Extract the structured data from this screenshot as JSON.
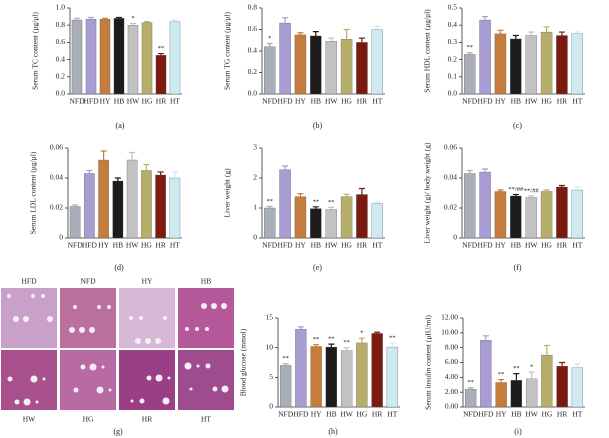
{
  "chart_data": [
    {
      "type": "bar",
      "label": "(a)",
      "ylabel": "Serum TC content (μg/μl)",
      "categories": [
        "NFD",
        "HFD",
        "HY",
        "HB",
        "HW",
        "HG",
        "HR",
        "HT"
      ],
      "colors": [
        "#a9aeb9",
        "#a99cd2",
        "#c47d3c",
        "#1c1c1c",
        "#c2c2c2",
        "#b7ae6c",
        "#7b1a10",
        "#cdeaf1"
      ],
      "values": [
        0.86,
        0.87,
        0.87,
        0.88,
        0.8,
        0.83,
        0.45,
        0.84
      ],
      "errors": [
        0.02,
        0.02,
        0.01,
        0.01,
        0.02,
        0.01,
        0.02,
        0.02
      ],
      "annotations": [
        null,
        null,
        null,
        null,
        "*",
        null,
        "**",
        null
      ],
      "ylim": [
        0,
        1.0
      ],
      "yticks": [
        {
          "value": 0,
          "label": "0.0"
        },
        0.2,
        0.4,
        0.6,
        0.8,
        {
          "value": 1.0,
          "label": "1.0"
        }
      ]
    },
    {
      "type": "bar",
      "label": "(b)",
      "ylabel": "Serum TG content (μg/μl)",
      "categories": [
        "NFD",
        "HFD",
        "HY",
        "HB",
        "HW",
        "HG",
        "HR",
        "HT"
      ],
      "colors": [
        "#a9aeb9",
        "#a99cd2",
        "#c47d3c",
        "#1c1c1c",
        "#c2c2c2",
        "#b7ae6c",
        "#7b1a10",
        "#cdeaf1"
      ],
      "values": [
        0.44,
        0.66,
        0.55,
        0.54,
        0.49,
        0.51,
        0.48,
        0.6
      ],
      "errors": [
        0.03,
        0.05,
        0.02,
        0.04,
        0.03,
        0.09,
        0.04,
        0.03
      ],
      "annotations": [
        "*",
        null,
        null,
        null,
        null,
        null,
        null,
        null
      ],
      "ylim": [
        0,
        0.8
      ],
      "yticks": [
        {
          "value": 0,
          "label": "0.0"
        },
        0.2,
        0.4,
        0.6,
        0.8
      ]
    },
    {
      "type": "bar",
      "label": "(c)",
      "ylabel": "Serum HDL content (μg/μl)",
      "categories": [
        "NFD",
        "HFD",
        "HY",
        "HB",
        "HW",
        "HG",
        "HR",
        "HT"
      ],
      "colors": [
        "#a9aeb9",
        "#a99cd2",
        "#c47d3c",
        "#1c1c1c",
        "#c2c2c2",
        "#b7ae6c",
        "#7b1a10",
        "#cdeaf1"
      ],
      "values": [
        0.23,
        0.43,
        0.35,
        0.32,
        0.34,
        0.36,
        0.34,
        0.35
      ],
      "errors": [
        0.01,
        0.02,
        0.02,
        0.02,
        0.02,
        0.03,
        0.02,
        0.01
      ],
      "annotations": [
        "**",
        null,
        null,
        null,
        null,
        null,
        null,
        null
      ],
      "ylim": [
        0,
        0.5
      ],
      "yticks": [
        {
          "value": 0,
          "label": "0.0"
        },
        0.1,
        0.2,
        0.3,
        0.4,
        0.5
      ]
    },
    {
      "type": "bar",
      "label": "(d)",
      "ylabel": "Serum LDL content (μg/μl)",
      "categories": [
        "NFD",
        "HFD",
        "HY",
        "HB",
        "HW",
        "HG",
        "HR",
        "HT"
      ],
      "colors": [
        "#a9aeb9",
        "#a99cd2",
        "#c47d3c",
        "#1c1c1c",
        "#c2c2c2",
        "#b7ae6c",
        "#7b1a10",
        "#cdeaf1"
      ],
      "values": [
        0.021,
        0.043,
        0.052,
        0.038,
        0.052,
        0.045,
        0.042,
        0.04
      ],
      "errors": [
        0.001,
        0.002,
        0.006,
        0.002,
        0.005,
        0.004,
        0.002,
        0.004
      ],
      "annotations": [
        null,
        null,
        null,
        null,
        null,
        null,
        null,
        null
      ],
      "ylim": [
        0,
        0.06
      ],
      "yticks": [
        0,
        0.02,
        0.04,
        0.06
      ]
    },
    {
      "type": "bar",
      "label": "(e)",
      "ylabel": "Liver weight (g)",
      "categories": [
        "NFD",
        "HFD",
        "HY",
        "HB",
        "HW",
        "HG",
        "HR",
        "HT"
      ],
      "colors": [
        "#a9aeb9",
        "#a99cd2",
        "#c47d3c",
        "#1c1c1c",
        "#c2c2c2",
        "#b7ae6c",
        "#7b1a10",
        "#cdeaf1"
      ],
      "values": [
        1.0,
        2.28,
        1.38,
        0.98,
        0.95,
        1.38,
        1.45,
        1.15
      ],
      "errors": [
        0.05,
        0.12,
        0.1,
        0.06,
        0.07,
        0.08,
        0.2,
        0.05
      ],
      "annotations": [
        "**",
        null,
        null,
        "**",
        "**",
        null,
        null,
        null
      ],
      "ylim": [
        0,
        3
      ],
      "yticks": [
        0,
        1,
        2,
        3
      ]
    },
    {
      "type": "bar",
      "label": "(f)",
      "ylabel": "Liver weight (g)/ body weight (g)",
      "categories": [
        "NFD",
        "HFD",
        "HY",
        "HB",
        "HW",
        "HG",
        "HR",
        "HT"
      ],
      "colors": [
        "#a9aeb9",
        "#a99cd2",
        "#c47d3c",
        "#1c1c1c",
        "#c2c2c2",
        "#b7ae6c",
        "#7b1a10",
        "#cdeaf1"
      ],
      "values": [
        0.043,
        0.044,
        0.031,
        0.028,
        0.027,
        0.031,
        0.034,
        0.032
      ],
      "errors": [
        0.002,
        0.002,
        0.001,
        0.001,
        0.001,
        0.001,
        0.001,
        0.002
      ],
      "annotations": [
        null,
        null,
        null,
        "**/##",
        "**/##",
        null,
        null,
        null
      ],
      "ylim": [
        0,
        0.06
      ],
      "yticks": [
        0,
        0.02,
        0.04,
        0.06
      ]
    },
    {
      "type": "bar",
      "label": "(h)",
      "ylabel": "Blood glucose (mmol)",
      "categories": [
        "NFD",
        "HFD",
        "HY",
        "HB",
        "HW",
        "HG",
        "HR",
        "HT"
      ],
      "colors": [
        "#a9aeb9",
        "#a99cd2",
        "#c47d3c",
        "#1c1c1c",
        "#c2c2c2",
        "#b7ae6c",
        "#7b1a10",
        "#cdeaf1"
      ],
      "values": [
        7.0,
        13.1,
        10.2,
        10.1,
        9.5,
        10.8,
        12.4,
        10.1
      ],
      "errors": [
        0.3,
        0.4,
        0.3,
        0.5,
        0.5,
        0.8,
        0.2,
        0.7
      ],
      "annotations": [
        "**",
        null,
        "**",
        "**",
        "**",
        "*",
        null,
        "**"
      ],
      "ylim": [
        0,
        15
      ],
      "yticks": [
        0,
        5,
        10,
        15
      ]
    },
    {
      "type": "bar",
      "label": "(i)",
      "ylabel": "Serum insulin content (μIU/ml)",
      "categories": [
        "NFD",
        "HFD",
        "HY",
        "HB",
        "HW",
        "HG",
        "HR",
        "HT"
      ],
      "colors": [
        "#a9aeb9",
        "#a99cd2",
        "#c47d3c",
        "#1c1c1c",
        "#c2c2c2",
        "#b7ae6c",
        "#7b1a10",
        "#cdeaf1"
      ],
      "values": [
        2.4,
        9.0,
        3.3,
        3.6,
        3.8,
        7.0,
        5.5,
        5.3
      ],
      "errors": [
        0.2,
        0.6,
        0.4,
        0.9,
        0.9,
        1.3,
        0.5,
        0.5
      ],
      "annotations": [
        "**",
        null,
        "**",
        "**",
        "*",
        null,
        null,
        null
      ],
      "ylim": [
        0,
        12
      ],
      "yticks": [
        {
          "value": 0,
          "label": "0.00"
        },
        {
          "value": 2,
          "label": "2.00"
        },
        {
          "value": 4,
          "label": "4.00"
        },
        {
          "value": 6,
          "label": "6.00"
        },
        {
          "value": 8,
          "label": "8.00"
        },
        {
          "value": 10,
          "label": "10.00"
        },
        {
          "value": 12,
          "label": "12.00"
        }
      ]
    }
  ],
  "histology": {
    "label": "(g)",
    "images": [
      "HFD",
      "NFD",
      "HY",
      "HB",
      "HW",
      "HG",
      "HR",
      "HT"
    ]
  }
}
